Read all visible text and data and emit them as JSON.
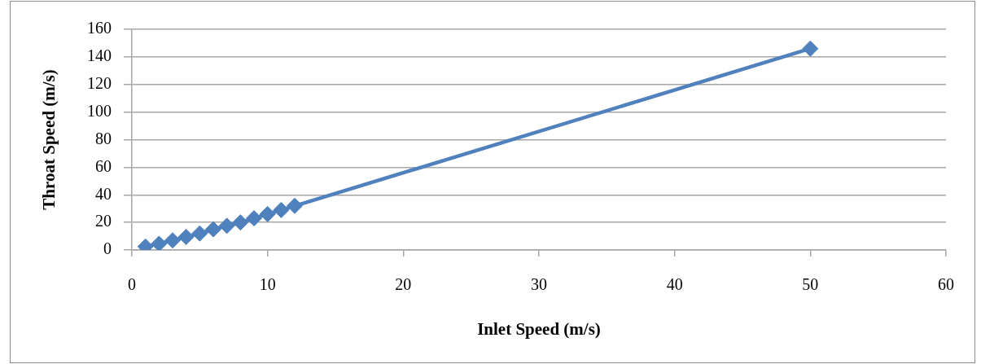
{
  "chart_data": {
    "type": "line",
    "xlabel": "Inlet Speed (m/s)",
    "ylabel": "Throat Speed (m/s)",
    "x": [
      1,
      2,
      3,
      4,
      5,
      6,
      7,
      8,
      9,
      10,
      11,
      12,
      50
    ],
    "values": [
      2.5,
      4.5,
      7,
      9.5,
      12,
      15,
      17.5,
      20,
      23,
      26,
      29,
      32,
      146
    ],
    "color": "#4f81bd",
    "xlim": [
      0,
      60
    ],
    "xticks": [
      0,
      10,
      20,
      30,
      40,
      50,
      60
    ],
    "ylim": [
      0,
      160
    ],
    "yticks": [
      0,
      20,
      40,
      60,
      80,
      100,
      120,
      140,
      160
    ],
    "grid": "y",
    "marker": "diamond",
    "line_style": "solid"
  }
}
